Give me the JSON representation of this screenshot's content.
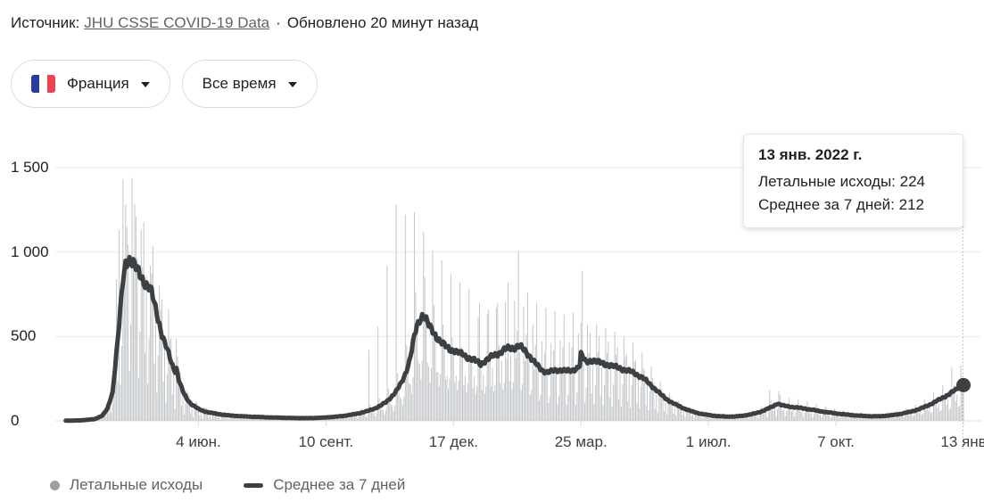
{
  "header": {
    "source_label": "Источник:",
    "source_link": "JHU CSSE COVID-19 Data",
    "separator": "·",
    "updated": "Обновлено 20 минут назад"
  },
  "filters": {
    "country_label": "Франция",
    "range_label": "Все время"
  },
  "tooltip": {
    "date": "13 янв. 2022 г.",
    "deaths_row": "Летальные исходы: 224",
    "average_row": "Среднее за 7 дней: 212"
  },
  "legend": {
    "deaths_label": "Летальные исходы",
    "average_label": "Среднее за 7 дней"
  },
  "colors": {
    "text": "#202124",
    "secondary_text": "#5f6368",
    "link": "#5f6368",
    "bars": "#c4c7ca",
    "line": "#3c4043",
    "grid": "#e8eaed",
    "axis": "#dadce0",
    "connector": "#9aa0a6",
    "highlight_dot": "#3c4043",
    "legend_dot": "#9aa0a6",
    "flag_blue": "#2a3b9c",
    "flag_white": "#ffffff",
    "flag_red": "#ed4353",
    "pill_border": "#dadce0"
  },
  "chart_data": {
    "type": "bar+line",
    "series": [
      {
        "name": "Летальные исходы",
        "type": "bar"
      },
      {
        "name": "Среднее за 7 дней",
        "type": "line"
      }
    ],
    "ylim": [
      0,
      1500
    ],
    "total_days": 698,
    "start_date": "15 февр. 2020",
    "y_ticks": [
      {
        "value": 0,
        "label": "0"
      },
      {
        "value": 500,
        "label": "500"
      },
      {
        "value": 1000,
        "label": "1 000"
      },
      {
        "value": 1500,
        "label": "1 500"
      }
    ],
    "x_ticks": [
      {
        "day": 110,
        "label": "4 июн."
      },
      {
        "day": 208,
        "label": "10 сент."
      },
      {
        "day": 306,
        "label": "17 дек."
      },
      {
        "day": 404,
        "label": "25 мар."
      },
      {
        "day": 502,
        "label": "1 июл."
      },
      {
        "day": 600,
        "label": "7 окт."
      },
      {
        "day": 698,
        "label": "13 янв"
      }
    ],
    "highlight": {
      "day": 698,
      "date": "13 янв. 2022 г.",
      "deaths": 224,
      "average": 212
    },
    "line": {
      "start_day": 8,
      "noise": {
        "amp1": 0.03,
        "freq1": 1.9,
        "amp2": 0.018,
        "freq2": 0.53
      }
    },
    "line_points": [
      [
        8,
        1
      ],
      [
        20,
        3
      ],
      [
        30,
        10
      ],
      [
        36,
        30
      ],
      [
        40,
        70
      ],
      [
        44,
        170
      ],
      [
        47,
        400
      ],
      [
        50,
        650
      ],
      [
        52,
        830
      ],
      [
        54,
        930
      ],
      [
        56,
        960
      ],
      [
        58,
        955
      ],
      [
        60,
        930
      ],
      [
        62,
        905
      ],
      [
        64,
        880
      ],
      [
        66,
        855
      ],
      [
        68,
        830
      ],
      [
        70,
        808
      ],
      [
        72,
        790
      ],
      [
        74,
        760
      ],
      [
        76,
        700
      ],
      [
        78,
        640
      ],
      [
        80,
        575
      ],
      [
        82,
        510
      ],
      [
        84,
        462
      ],
      [
        86,
        420
      ],
      [
        88,
        375
      ],
      [
        90,
        330
      ],
      [
        92,
        298
      ],
      [
        93,
        312
      ],
      [
        95,
        240
      ],
      [
        97,
        195
      ],
      [
        99,
        158
      ],
      [
        101,
        132
      ],
      [
        104,
        103
      ],
      [
        107,
        86
      ],
      [
        110,
        70
      ],
      [
        114,
        58
      ],
      [
        118,
        50
      ],
      [
        123,
        43
      ],
      [
        128,
        37
      ],
      [
        134,
        32
      ],
      [
        142,
        28
      ],
      [
        152,
        24
      ],
      [
        162,
        21
      ],
      [
        172,
        19
      ],
      [
        182,
        17
      ],
      [
        192,
        16
      ],
      [
        200,
        17
      ],
      [
        208,
        20
      ],
      [
        216,
        25
      ],
      [
        222,
        30
      ],
      [
        228,
        37
      ],
      [
        234,
        46
      ],
      [
        240,
        58
      ],
      [
        245,
        72
      ],
      [
        250,
        90
      ],
      [
        254,
        110
      ],
      [
        258,
        140
      ],
      [
        262,
        175
      ],
      [
        266,
        225
      ],
      [
        269,
        280
      ],
      [
        272,
        350
      ],
      [
        274,
        420
      ],
      [
        276,
        500
      ],
      [
        278,
        560
      ],
      [
        280,
        600
      ],
      [
        282,
        625
      ],
      [
        283,
        632
      ],
      [
        285,
        600
      ],
      [
        287,
        565
      ],
      [
        289,
        540
      ],
      [
        292,
        510
      ],
      [
        295,
        480
      ],
      [
        298,
        455
      ],
      [
        301,
        435
      ],
      [
        304,
        420
      ],
      [
        307,
        416
      ],
      [
        310,
        404
      ],
      [
        313,
        394
      ],
      [
        316,
        380
      ],
      [
        319,
        371
      ],
      [
        322,
        359
      ],
      [
        325,
        345
      ],
      [
        327,
        335
      ],
      [
        329,
        350
      ],
      [
        332,
        364
      ],
      [
        335,
        377
      ],
      [
        338,
        390
      ],
      [
        341,
        403
      ],
      [
        344,
        416
      ],
      [
        347,
        426
      ],
      [
        350,
        431
      ],
      [
        353,
        437
      ],
      [
        356,
        444
      ],
      [
        359,
        428
      ],
      [
        362,
        405
      ],
      [
        365,
        382
      ],
      [
        368,
        350
      ],
      [
        371,
        322
      ],
      [
        374,
        300
      ],
      [
        377,
        291
      ],
      [
        380,
        290
      ],
      [
        383,
        295
      ],
      [
        386,
        300
      ],
      [
        389,
        303
      ],
      [
        392,
        297
      ],
      [
        395,
        294
      ],
      [
        398,
        300
      ],
      [
        401,
        315
      ],
      [
        403,
        330
      ],
      [
        404,
        394
      ],
      [
        406,
        368
      ],
      [
        408,
        346
      ],
      [
        410,
        354
      ],
      [
        413,
        359
      ],
      [
        416,
        351
      ],
      [
        419,
        344
      ],
      [
        422,
        337
      ],
      [
        426,
        330
      ],
      [
        430,
        321
      ],
      [
        434,
        312
      ],
      [
        438,
        302
      ],
      [
        442,
        292
      ],
      [
        446,
        280
      ],
      [
        450,
        262
      ],
      [
        454,
        238
      ],
      [
        458,
        210
      ],
      [
        462,
        182
      ],
      [
        466,
        152
      ],
      [
        470,
        128
      ],
      [
        474,
        108
      ],
      [
        478,
        92
      ],
      [
        482,
        78
      ],
      [
        486,
        65
      ],
      [
        490,
        54
      ],
      [
        495,
        44
      ],
      [
        500,
        37
      ],
      [
        505,
        31
      ],
      [
        511,
        27
      ],
      [
        517,
        25
      ],
      [
        523,
        26
      ],
      [
        529,
        31
      ],
      [
        535,
        39
      ],
      [
        541,
        51
      ],
      [
        546,
        66
      ],
      [
        550,
        80
      ],
      [
        553,
        93
      ],
      [
        555,
        103
      ],
      [
        557,
        97
      ],
      [
        559,
        91
      ],
      [
        562,
        87
      ],
      [
        565,
        84
      ],
      [
        569,
        80
      ],
      [
        573,
        76
      ],
      [
        577,
        71
      ],
      [
        581,
        66
      ],
      [
        585,
        61
      ],
      [
        589,
        56
      ],
      [
        593,
        51
      ],
      [
        597,
        47
      ],
      [
        602,
        42
      ],
      [
        607,
        38
      ],
      [
        612,
        34
      ],
      [
        617,
        31
      ],
      [
        622,
        29
      ],
      [
        627,
        27
      ],
      [
        632,
        27
      ],
      [
        637,
        29
      ],
      [
        642,
        33
      ],
      [
        647,
        38
      ],
      [
        652,
        45
      ],
      [
        656,
        52
      ],
      [
        660,
        60
      ],
      [
        664,
        70
      ],
      [
        668,
        82
      ],
      [
        672,
        96
      ],
      [
        676,
        112
      ],
      [
        680,
        128
      ],
      [
        684,
        145
      ],
      [
        687,
        159
      ],
      [
        690,
        174
      ],
      [
        693,
        189
      ],
      [
        695,
        200
      ],
      [
        698,
        212
      ]
    ],
    "bars": {
      "start_day": 13,
      "weekly_pattern": [
        0.85,
        0.35,
        0.65,
        1.45,
        1.25,
        1.1,
        0.55
      ],
      "noise": {
        "amp1": 0.22,
        "freq1": 2.71,
        "amp2": 0.12,
        "freq2": 0.937
      },
      "overrides": {
        "47": 840,
        "49": 1130,
        "52": 1430,
        "55": 1150,
        "59": 1438,
        "62": 1210,
        "66": 1130,
        "73": 920,
        "80": 800,
        "87": 660,
        "93": 490,
        "241": 420,
        "248": 560,
        "255": 920,
        "262": 1280,
        "269": 1220,
        "276": 1235,
        "283": 1120,
        "290": 1010,
        "297": 950,
        "304": 870,
        "311": 820,
        "318": 780,
        "326": 700,
        "333": 660,
        "340": 700,
        "348": 820,
        "356": 1005,
        "363": 760,
        "370": 700,
        "377": 670,
        "384": 650,
        "391": 630,
        "398": 640,
        "405": 890,
        "549": 185,
        "556": 175,
        "689": 320,
        "696": 330,
        "698": 224
      }
    }
  }
}
